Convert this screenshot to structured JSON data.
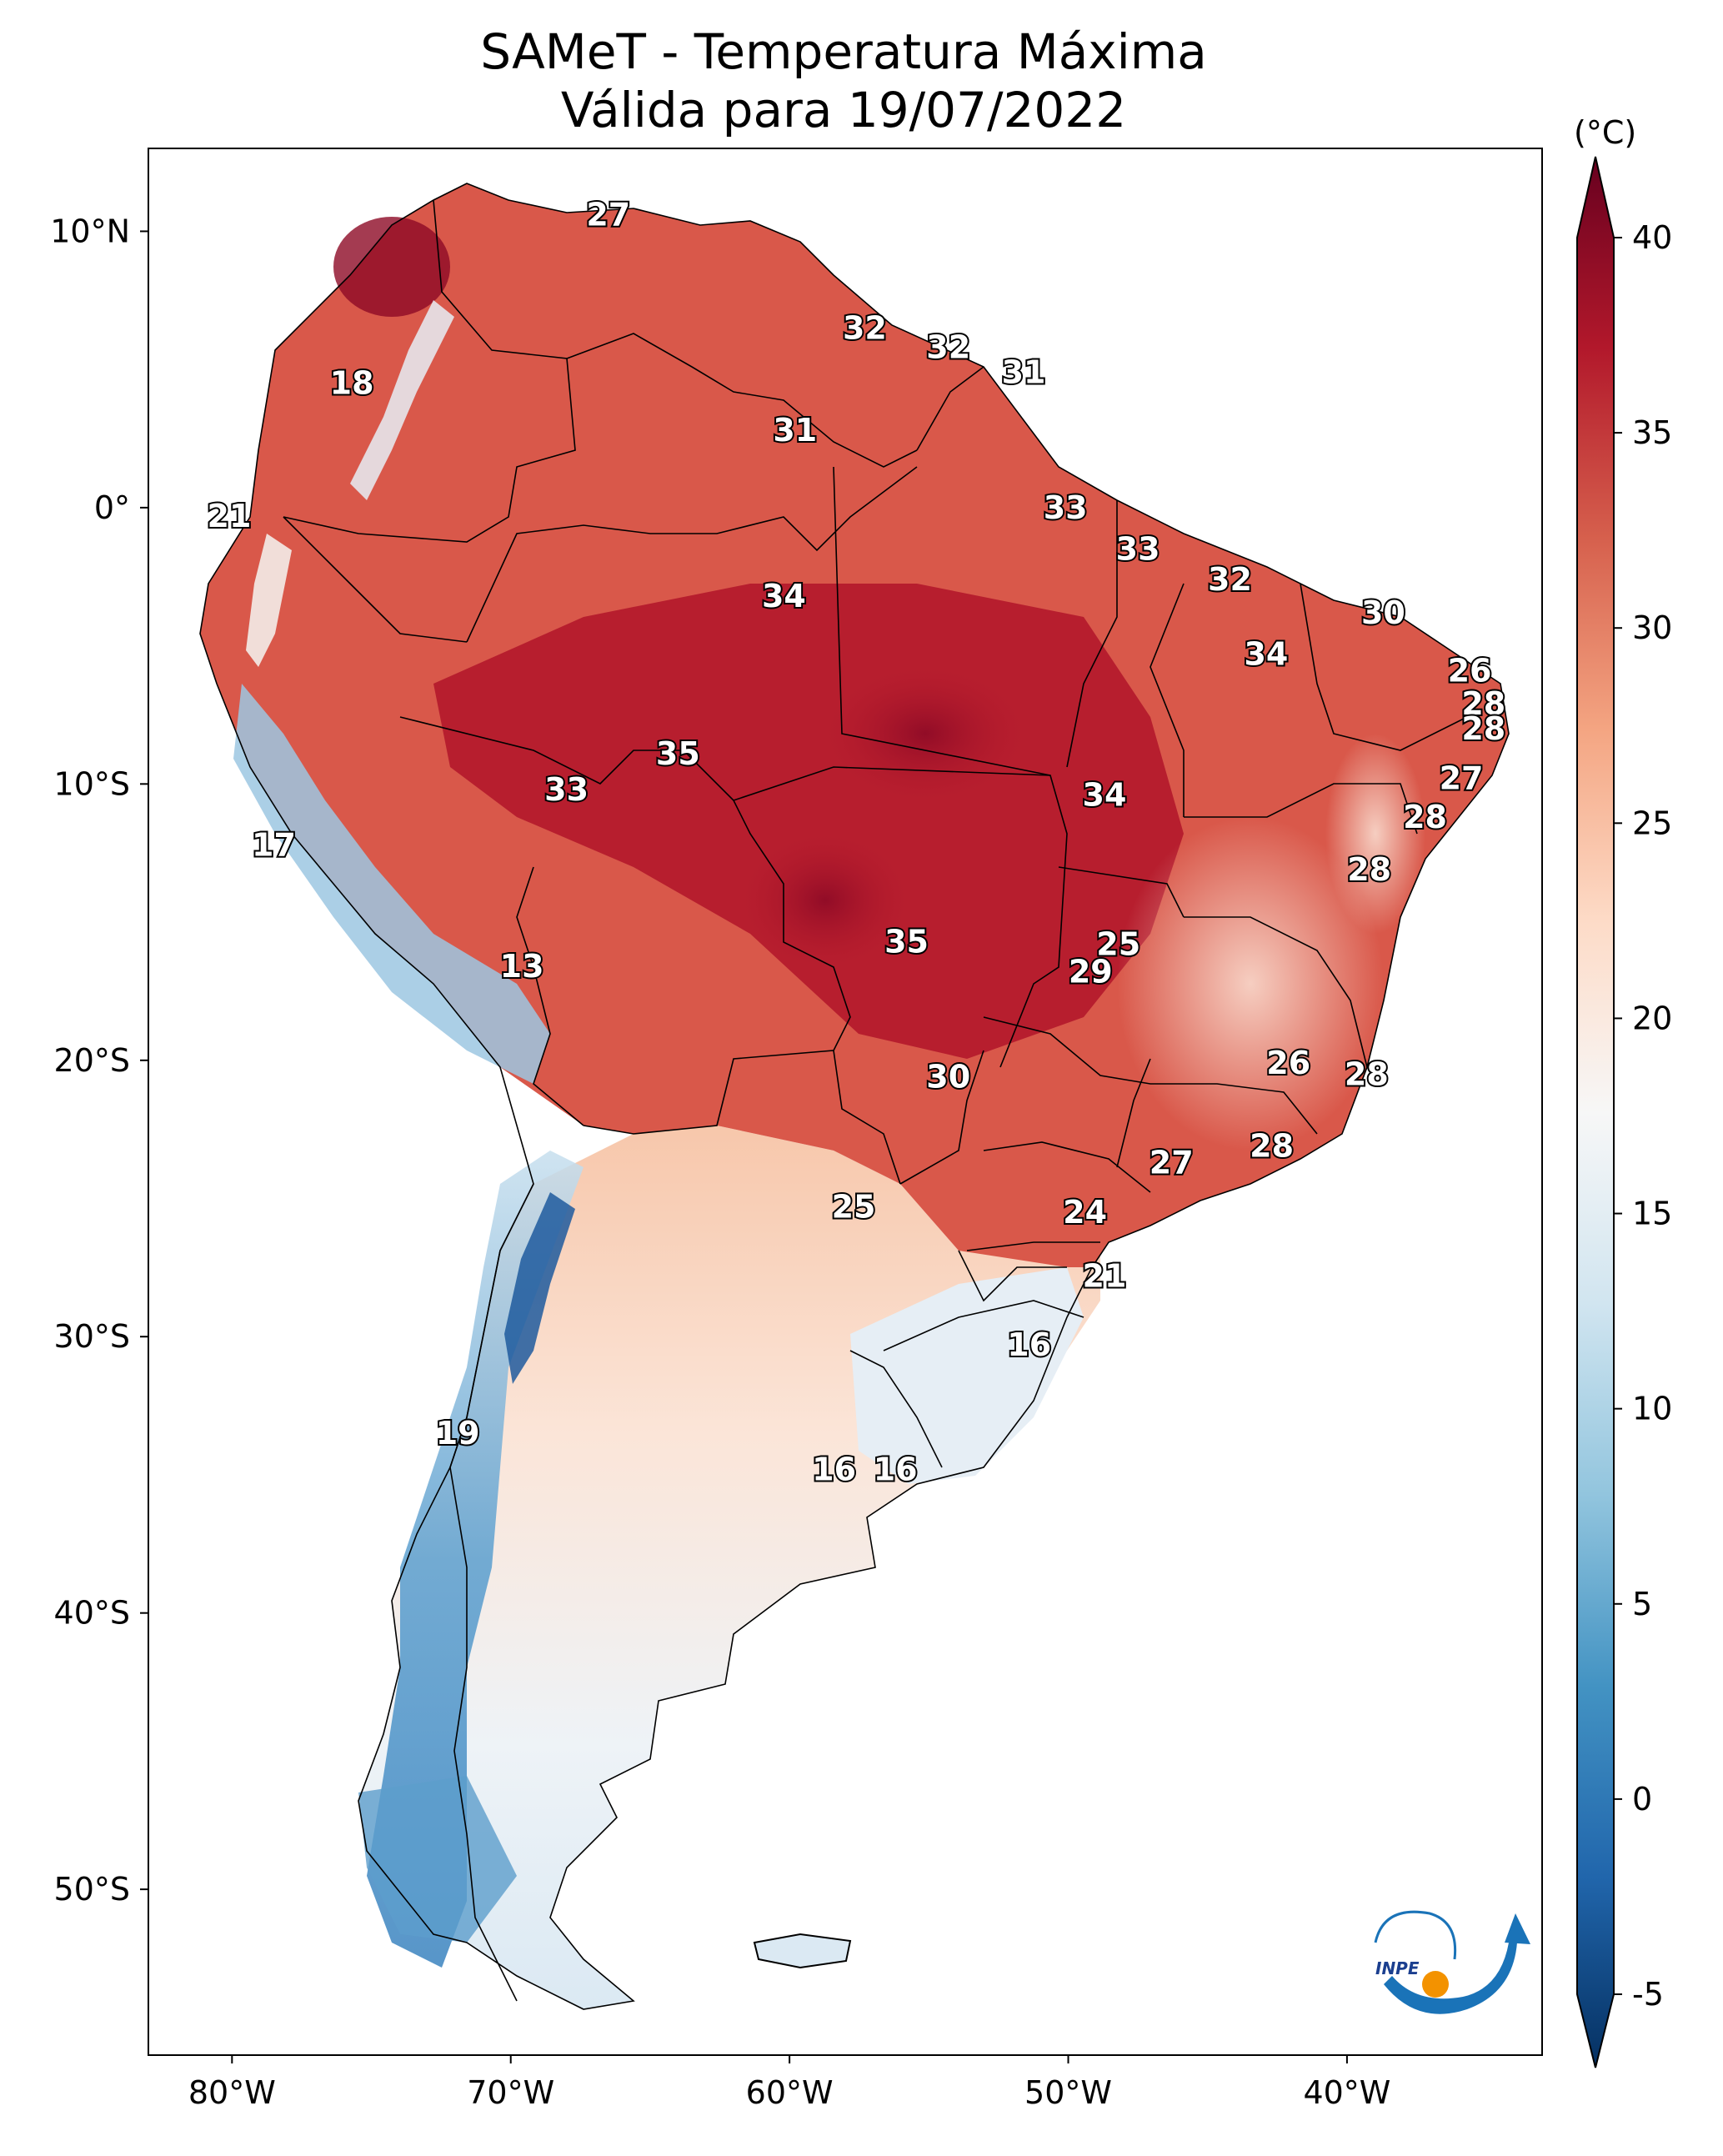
{
  "title": {
    "line1": "SAMeT - Temperatura Máxima",
    "line2": "Válida para 19/07/2022"
  },
  "map": {
    "lon_ticks": [
      "80°W",
      "70°W",
      "60°W",
      "50°W",
      "40°W"
    ],
    "lat_ticks": [
      "10°N",
      "0°",
      "10°S",
      "20°S",
      "30°S",
      "40°S",
      "50°S"
    ],
    "extent": {
      "lon_min": -83,
      "lon_max": -33,
      "lat_min": -56,
      "lat_max": 13
    },
    "labels": [
      {
        "text": "27",
        "lon": -66.5,
        "lat": 10.6
      },
      {
        "text": "32",
        "lon": -57.3,
        "lat": 6.5
      },
      {
        "text": "32",
        "lon": -54.3,
        "lat": 5.8
      },
      {
        "text": "31",
        "lon": -51.6,
        "lat": 4.9
      },
      {
        "text": "31",
        "lon": -59.8,
        "lat": 2.8
      },
      {
        "text": "18",
        "lon": -75.7,
        "lat": 4.5
      },
      {
        "text": "21",
        "lon": -80.1,
        "lat": -0.3
      },
      {
        "text": "33",
        "lon": -50.1,
        "lat": 0.0
      },
      {
        "text": "33",
        "lon": -47.5,
        "lat": -1.5
      },
      {
        "text": "32",
        "lon": -44.2,
        "lat": -2.6
      },
      {
        "text": "34",
        "lon": -60.2,
        "lat": -3.2
      },
      {
        "text": "30",
        "lon": -38.7,
        "lat": -3.8
      },
      {
        "text": "34",
        "lon": -42.9,
        "lat": -5.3
      },
      {
        "text": "26",
        "lon": -35.6,
        "lat": -5.9
      },
      {
        "text": "28",
        "lon": -35.1,
        "lat": -7.1
      },
      {
        "text": "28",
        "lon": -35.1,
        "lat": -8.0
      },
      {
        "text": "35",
        "lon": -64.0,
        "lat": -8.9
      },
      {
        "text": "33",
        "lon": -68.0,
        "lat": -10.2
      },
      {
        "text": "27",
        "lon": -35.9,
        "lat": -9.8
      },
      {
        "text": "34",
        "lon": -48.7,
        "lat": -10.4
      },
      {
        "text": "28",
        "lon": -37.2,
        "lat": -11.2
      },
      {
        "text": "17",
        "lon": -78.5,
        "lat": -12.2
      },
      {
        "text": "28",
        "lon": -39.2,
        "lat": -13.1
      },
      {
        "text": "35",
        "lon": -55.8,
        "lat": -15.7
      },
      {
        "text": "25",
        "lon": -48.2,
        "lat": -15.8
      },
      {
        "text": "29",
        "lon": -49.2,
        "lat": -16.8
      },
      {
        "text": "13",
        "lon": -69.6,
        "lat": -16.6
      },
      {
        "text": "26",
        "lon": -42.1,
        "lat": -20.1
      },
      {
        "text": "28",
        "lon": -39.3,
        "lat": -20.5
      },
      {
        "text": "30",
        "lon": -54.3,
        "lat": -20.6
      },
      {
        "text": "28",
        "lon": -42.7,
        "lat": -23.1
      },
      {
        "text": "27",
        "lon": -46.3,
        "lat": -23.7
      },
      {
        "text": "25",
        "lon": -57.7,
        "lat": -25.3
      },
      {
        "text": "24",
        "lon": -49.4,
        "lat": -25.5
      },
      {
        "text": "21",
        "lon": -48.7,
        "lat": -27.8
      },
      {
        "text": "16",
        "lon": -51.4,
        "lat": -30.3
      },
      {
        "text": "19",
        "lon": -71.9,
        "lat": -33.5
      },
      {
        "text": "16",
        "lon": -58.4,
        "lat": -34.8
      },
      {
        "text": "16",
        "lon": -56.2,
        "lat": -34.8
      }
    ]
  },
  "colorbar": {
    "unit": "(°C)",
    "min": -5,
    "max": 40,
    "ticks": [
      "40",
      "35",
      "30",
      "25",
      "20",
      "15",
      "10",
      "5",
      "0",
      "-5"
    ],
    "colors": [
      "#053061",
      "#2166ac",
      "#4393c3",
      "#92c5de",
      "#d1e5f0",
      "#f7f7f7",
      "#fddbc7",
      "#f4a582",
      "#d6604d",
      "#b2182b",
      "#67001f"
    ]
  },
  "logo": {
    "text": "INPE"
  }
}
